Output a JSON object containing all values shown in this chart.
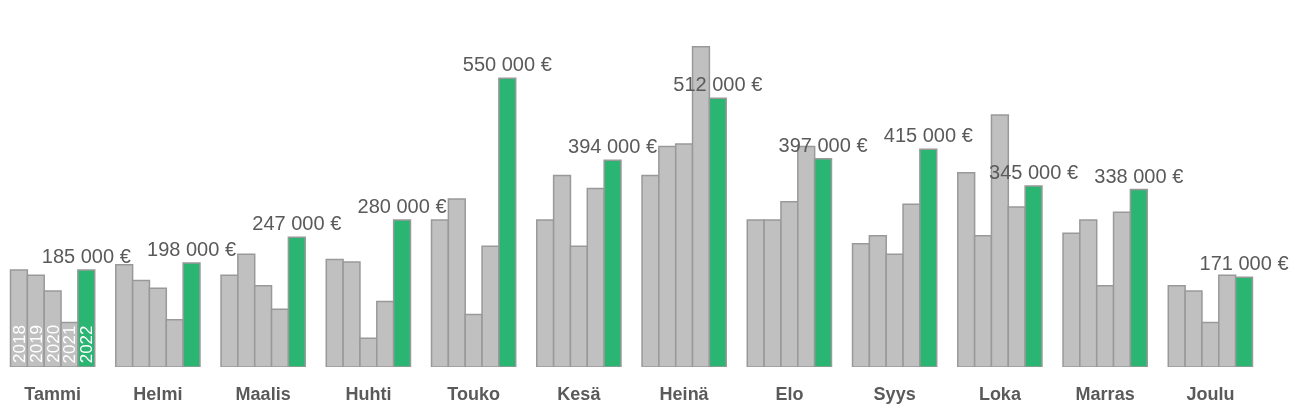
{
  "chart_data": {
    "type": "bar",
    "categories": [
      "Tammi",
      "Helmi",
      "Maalis",
      "Huhti",
      "Touko",
      "Kesä",
      "Heinä",
      "Elo",
      "Syys",
      "Loka",
      "Marras",
      "Joulu"
    ],
    "legend": false,
    "grid": false,
    "series": [
      {
        "name": "2018",
        "color": "#c0c0c0",
        "values": [
          185000,
          195000,
          175000,
          205000,
          280000,
          280000,
          365000,
          280000,
          235000,
          370000,
          255000,
          155000
        ]
      },
      {
        "name": "2019",
        "color": "#c0c0c0",
        "values": [
          175000,
          165000,
          215000,
          200000,
          320000,
          365000,
          420000,
          280000,
          250000,
          250000,
          280000,
          145000
        ]
      },
      {
        "name": "2020",
        "color": "#c0c0c0",
        "values": [
          145000,
          150000,
          155000,
          55000,
          100000,
          230000,
          425000,
          315000,
          215000,
          480000,
          155000,
          85000
        ]
      },
      {
        "name": "2021",
        "color": "#c0c0c0",
        "values": [
          85000,
          90000,
          110000,
          125000,
          230000,
          340000,
          610000,
          420000,
          310000,
          305000,
          295000,
          175000
        ]
      },
      {
        "name": "2022",
        "color": "#2ab573",
        "values": [
          185000,
          198000,
          247000,
          280000,
          550000,
          394000,
          512000,
          397000,
          415000,
          345000,
          338000,
          171000
        ],
        "value_labels": [
          "185 000 €",
          "198 000 €",
          "247 000 €",
          "280 000 €",
          "550 000 €",
          "394 000 €",
          "512 000 €",
          "397 000 €",
          "415 000 €",
          "345 000 €",
          "338 000 €",
          "171 000 €"
        ]
      }
    ]
  }
}
